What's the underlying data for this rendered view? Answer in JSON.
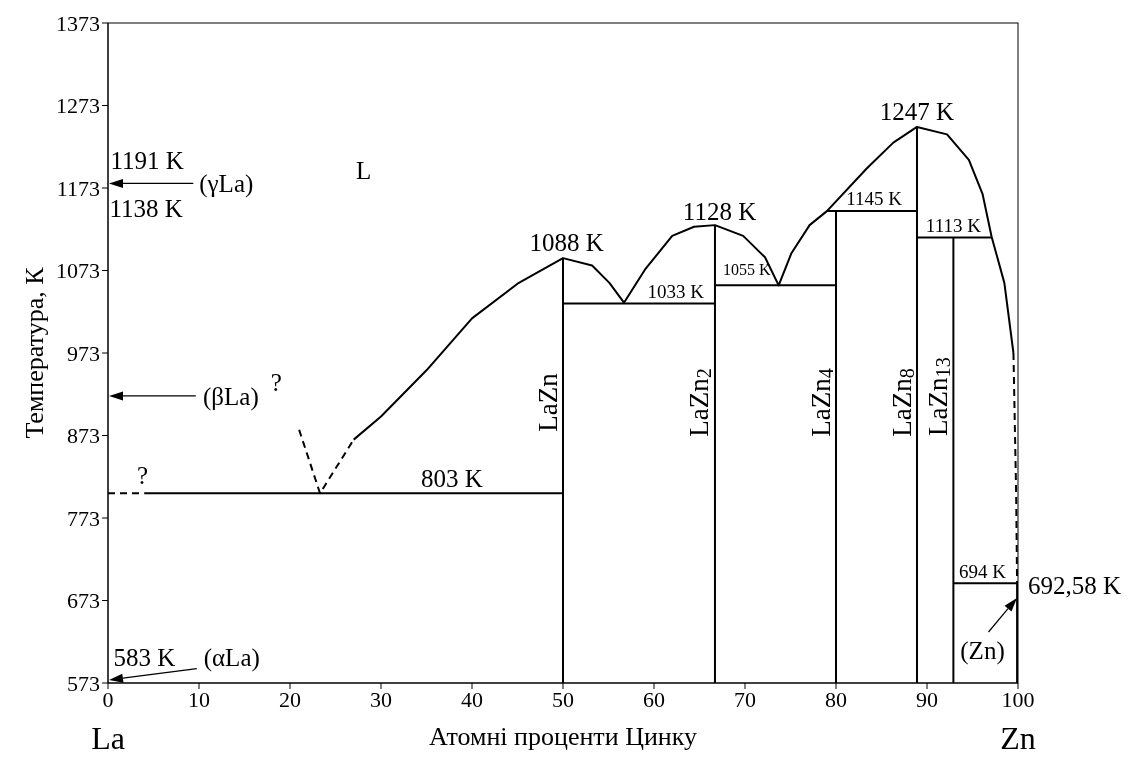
{
  "chart_data": {
    "type": "line",
    "xlabel": "Атомні проценти Цинку",
    "ylabel": "Температура, К",
    "xlim": [
      0,
      100
    ],
    "ylim": [
      573,
      1373
    ],
    "xticks": [
      0,
      10,
      20,
      30,
      40,
      50,
      60,
      70,
      80,
      90,
      100
    ],
    "yticks": [
      573,
      673,
      773,
      873,
      973,
      1073,
      1173,
      1273,
      1373
    ],
    "grid": false,
    "marker": "none",
    "series": [
      {
        "x": [
          27,
          30,
          35,
          40,
          45,
          50,
          53.2,
          55.1,
          56.7,
          59,
          62,
          64.4,
          66.7,
          69.8,
          72.2,
          73.7,
          75.1,
          77.1,
          79,
          83.4,
          86.3,
          88.9,
          92.2,
          94.6,
          96.1,
          97.1,
          98.5,
          99.5
        ],
        "values": [
          868,
          896,
          952,
          1015,
          1057,
          1088,
          1079,
          1058,
          1034,
          1074,
          1115,
          1126,
          1128,
          1115,
          1089,
          1055,
          1094,
          1128,
          1145,
          1197,
          1228,
          1247,
          1238,
          1207,
          1166,
          1114,
          1058,
          973
        ],
        "color": "#000000",
        "line_style": "solid"
      },
      {
        "x": [
          21,
          23.3,
          27
        ],
        "values": [
          880,
          803,
          868
        ],
        "color": "#000000",
        "line_style": "dashed"
      },
      {
        "x": [
          0,
          4
        ],
        "values": [
          803,
          803
        ],
        "color": "#000000",
        "line_style": "dashed"
      },
      {
        "x": [
          4,
          50
        ],
        "values": [
          803,
          803
        ],
        "color": "#000000",
        "line_style": "solid"
      },
      {
        "x": [
          99.5,
          99.8,
          99.9
        ],
        "values": [
          973,
          800,
          694
        ],
        "color": "#000000",
        "line_style": "dashed"
      },
      {
        "x": [
          50,
          66.7
        ],
        "values": [
          1033,
          1033
        ],
        "color": "#000000",
        "line_style": "solid"
      },
      {
        "x": [
          66.7,
          80
        ],
        "values": [
          1055,
          1055
        ],
        "color": "#000000",
        "line_style": "solid"
      },
      {
        "x": [
          79,
          88.9
        ],
        "values": [
          1145,
          1145
        ],
        "color": "#000000",
        "line_style": "solid"
      },
      {
        "x": [
          88.9,
          97.1
        ],
        "values": [
          1113,
          1113
        ],
        "color": "#000000",
        "line_style": "solid"
      },
      {
        "x": [
          92.9,
          100
        ],
        "values": [
          694,
          694
        ],
        "color": "#000000",
        "line_style": "solid"
      },
      {
        "x": [
          50,
          50
        ],
        "values": [
          573,
          1088
        ],
        "color": "#000000",
        "line_style": "solid"
      },
      {
        "x": [
          66.7,
          66.7
        ],
        "values": [
          573,
          1128
        ],
        "color": "#000000",
        "line_style": "solid"
      },
      {
        "x": [
          80,
          80
        ],
        "values": [
          573,
          1145
        ],
        "color": "#000000",
        "line_style": "solid"
      },
      {
        "x": [
          88.9,
          88.9
        ],
        "values": [
          573,
          1247
        ],
        "color": "#000000",
        "line_style": "solid"
      },
      {
        "x": [
          92.9,
          92.9
        ],
        "values": [
          573,
          1113
        ],
        "color": "#000000",
        "line_style": "solid"
      },
      {
        "x": [
          99.9,
          99.9
        ],
        "values": [
          573,
          694
        ],
        "color": "#000000",
        "line_style": "solid"
      }
    ],
    "annotations": [
      "L",
      "?",
      "?",
      "1191 K",
      "(γLa)",
      "1138 K",
      "(βLa)",
      "583 K",
      "(αLa)",
      "803 K",
      "1088 K",
      "1128 K",
      "1247 K",
      "1033 K",
      "1055 K",
      "1145 K",
      "1113 K",
      "694 K",
      "692,58 K",
      "(Zn)",
      "LaZn",
      "LaZn$_{2}$",
      "LaZn$_{4}$",
      "LaZn$_{8}$",
      "LaZn$_{13}$",
      "La",
      "Zn"
    ]
  }
}
